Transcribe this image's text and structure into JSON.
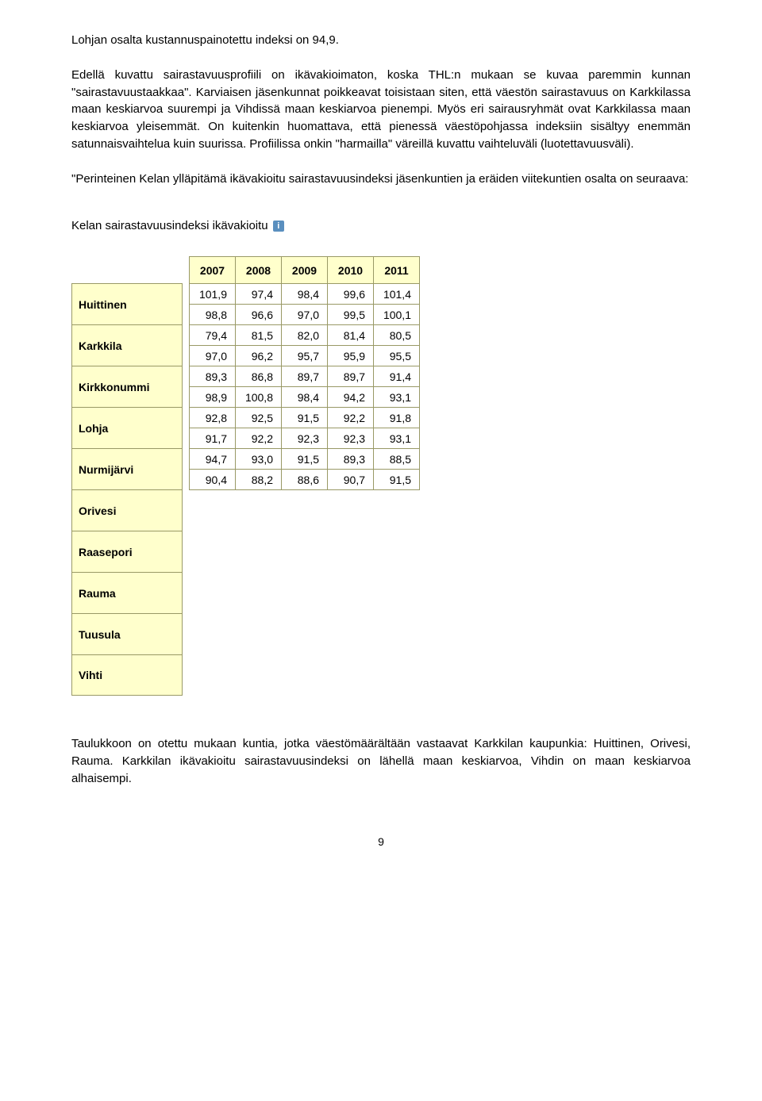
{
  "para1": "Lohjan osalta kustannuspainotettu indeksi on 94,9.",
  "para2": "Edellä kuvattu sairastavuusprofiili on ikävakioimaton, koska THL:n mukaan se kuvaa paremmin kunnan \"sairastavuustaakkaa\". Karviaisen jäsenkunnat poikkeavat toisistaan siten, että väestön sairastavuus on Karkkilassa maan keskiarvoa suurempi ja Vihdissä maan keskiarvoa pienempi. Myös eri sairausryhmät ovat Karkkilassa maan keskiarvoa yleisemmät. On kuitenkin huomattava, että pienessä väestöpohjassa indeksiin sisältyy enemmän satunnaisvaihtelua kuin suurissa. Profiilissa onkin \"harmailla\" väreillä kuvattu vaihteluväli (luotettavuusväli).",
  "para3": "\"Perinteinen Kelan ylläpitämä ikävakioitu sairastavuusindeksi jäsenkuntien ja eräiden viitekuntien osalta on seuraava:",
  "table_title": "Kelan sairastavuusindeksi ikävakioitu",
  "info_glyph": "i",
  "years": [
    "2007",
    "2008",
    "2009",
    "2010",
    "2011"
  ],
  "row_labels": [
    "Huittinen",
    "Karkkila",
    "Kirkkonummi",
    "Lohja",
    "Nurmijärvi",
    "Orivesi",
    "Raasepori",
    "Rauma",
    "Tuusula",
    "Vihti"
  ],
  "rows": [
    [
      "101,9",
      "97,4",
      "98,4",
      "99,6",
      "101,4"
    ],
    [
      "98,8",
      "96,6",
      "97,0",
      "99,5",
      "100,1"
    ],
    [
      "79,4",
      "81,5",
      "82,0",
      "81,4",
      "80,5"
    ],
    [
      "97,0",
      "96,2",
      "95,7",
      "95,9",
      "95,5"
    ],
    [
      "89,3",
      "86,8",
      "89,7",
      "89,7",
      "91,4"
    ],
    [
      "98,9",
      "100,8",
      "98,4",
      "94,2",
      "93,1"
    ],
    [
      "92,8",
      "92,5",
      "91,5",
      "92,2",
      "91,8"
    ],
    [
      "91,7",
      "92,2",
      "92,3",
      "92,3",
      "93,1"
    ],
    [
      "94,7",
      "93,0",
      "91,5",
      "89,3",
      "88,5"
    ],
    [
      "90,4",
      "88,2",
      "88,6",
      "90,7",
      "91,5"
    ]
  ],
  "para4": "Taulukkoon on otettu mukaan kuntia, jotka väestömäärältään vastaavat Karkkilan kaupunkia: Huittinen, Orivesi, Rauma. Karkkilan ikävakioitu sairastavuusindeksi on lähellä maan keskiarvoa, Vihdin on maan keskiarvoa alhaisempi.",
  "page_number": "9",
  "colors": {
    "header_bg": "#ffffcc",
    "border": "#999966",
    "cell_bg": "#ffffff",
    "text": "#000000",
    "info_bg": "#5a8fbf"
  }
}
